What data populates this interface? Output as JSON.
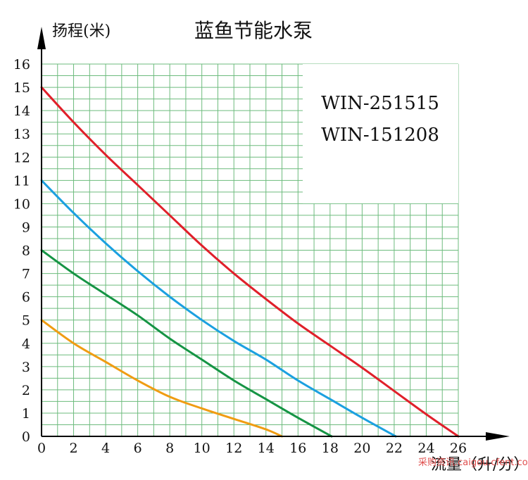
{
  "chart_data": {
    "type": "line",
    "title": "蓝鱼节能水泵",
    "ylabel": "扬程(米)",
    "xlabel": "流量（升/分）",
    "xlim": [
      0,
      26
    ],
    "ylim": [
      0,
      16
    ],
    "x_ticks": [
      0,
      2,
      4,
      6,
      8,
      10,
      12,
      14,
      16,
      18,
      20,
      22,
      24,
      26
    ],
    "y_ticks": [
      0,
      1,
      2,
      3,
      4,
      5,
      6,
      7,
      8,
      9,
      10,
      11,
      12,
      13,
      14,
      15,
      16
    ],
    "grid": true,
    "grid_color": "#6dbb7d",
    "annotations": [
      "WIN-251515",
      "WIN-151208"
    ],
    "series": [
      {
        "color": "#e0202a",
        "x": [
          0,
          2,
          4,
          6,
          8,
          10,
          12,
          14,
          16,
          18,
          20,
          22,
          24,
          26
        ],
        "y": [
          15,
          13.5,
          12.1,
          10.8,
          9.5,
          8.2,
          7.0,
          5.9,
          4.85,
          3.9,
          2.95,
          1.95,
          0.95,
          0
        ]
      },
      {
        "color": "#1ba0e0",
        "x": [
          0,
          2,
          4,
          6,
          8,
          10,
          12,
          14,
          16,
          18,
          20,
          22.1
        ],
        "y": [
          11,
          9.6,
          8.3,
          7.1,
          6.0,
          5.0,
          4.1,
          3.3,
          2.4,
          1.6,
          0.8,
          0
        ]
      },
      {
        "color": "#159444",
        "x": [
          0,
          2,
          4,
          6,
          8,
          10,
          12,
          14,
          16,
          18.1
        ],
        "y": [
          8,
          7.0,
          6.1,
          5.2,
          4.2,
          3.3,
          2.4,
          1.6,
          0.8,
          0
        ]
      },
      {
        "color": "#f09c12",
        "x": [
          0,
          2,
          4,
          6,
          8,
          10,
          12,
          14,
          15
        ],
        "y": [
          5,
          4.0,
          3.2,
          2.4,
          1.7,
          1.2,
          0.75,
          0.3,
          0
        ]
      }
    ]
  },
  "watermark": "采购资讯.caigou.cfent.com"
}
